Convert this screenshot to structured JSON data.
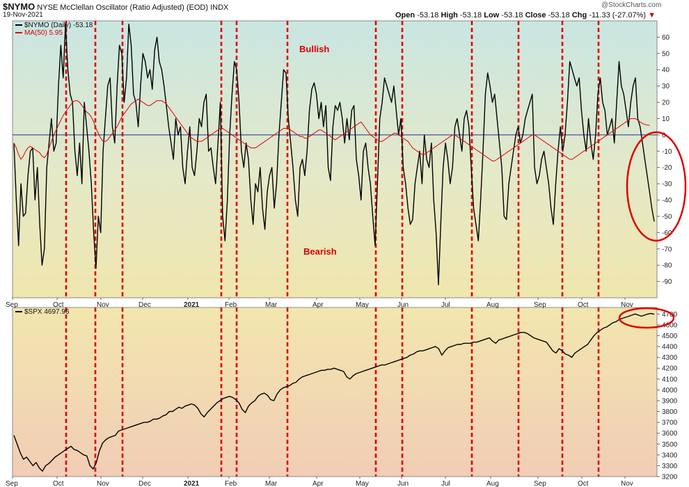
{
  "header": {
    "symbol": "$NYMO",
    "description": "NYSE McClellan Oscillator (Ratio Adjusted) (EOD)",
    "index_tag": "INDX",
    "date": "19-Nov-2021",
    "open_label": "Open",
    "open_value": "-53.18",
    "high_label": "High",
    "high_value": "-53.18",
    "low_label": "Low",
    "low_value": "-53.18",
    "close_label": "Close",
    "close_value": "-53.18",
    "chg_label": "Chg",
    "chg_value": "-11.33 (-27.07%)",
    "watermark": "@StockCharts.com"
  },
  "colors": {
    "price_line": "#000000",
    "ma_line": "#dd0000",
    "vline": "#e00000",
    "zero_line": "#1f2f8f",
    "ellipse": "#e00000",
    "annotation": "#dd0000"
  },
  "chart_data": [
    {
      "type": "line",
      "legend": [
        {
          "name": "$NYMO (Daily) -53.18",
          "color": "#000000"
        },
        {
          "name": "MA(50) 5.95",
          "color": "#dd0000"
        }
      ],
      "annotations": [
        "Bullish",
        "Bearish"
      ],
      "ylim": [
        -100,
        70
      ],
      "yticks": [
        60,
        50,
        40,
        30,
        20,
        10,
        0,
        -10,
        -20,
        -30,
        -40,
        -50,
        -60,
        -70,
        -80,
        -90
      ],
      "x_tick_labels": [
        "Sep",
        "Oct",
        "Nov",
        "Dec",
        "2021",
        "Feb",
        "Mar",
        "Apr",
        "May",
        "Jun",
        "Jul",
        "Aug",
        "Sep",
        "Oct",
        "Nov"
      ],
      "series": [
        {
          "name": "$NYMO (Daily)",
          "values": [
            -5,
            -40,
            -68,
            -30,
            -50,
            -48,
            -25,
            -10,
            -8,
            -40,
            -20,
            -55,
            -80,
            -70,
            -20,
            -5,
            10,
            -10,
            -5,
            30,
            55,
            35,
            68,
            40,
            25,
            20,
            -10,
            -25,
            -5,
            -30,
            20,
            5,
            -10,
            -30,
            -60,
            -82,
            -50,
            -60,
            -10,
            10,
            30,
            35,
            5,
            -5,
            30,
            55,
            50,
            20,
            35,
            68,
            55,
            25,
            20,
            5,
            30,
            50,
            45,
            35,
            40,
            28,
            52,
            60,
            45,
            40,
            30,
            18,
            5,
            -5,
            -15,
            10,
            0,
            5,
            -20,
            -30,
            -10,
            5,
            -20,
            -25,
            -10,
            10,
            5,
            20,
            25,
            -10,
            -8,
            -20,
            -30,
            -5,
            20,
            -50,
            -65,
            -40,
            0,
            25,
            45,
            40,
            20,
            -10,
            -20,
            -5,
            -15,
            -40,
            -55,
            -30,
            -35,
            -20,
            -45,
            -58,
            -35,
            -25,
            -20,
            -45,
            -30,
            0,
            20,
            40,
            38,
            10,
            -5,
            -20,
            -40,
            -50,
            -20,
            -15,
            -25,
            -10,
            15,
            28,
            32,
            25,
            10,
            20,
            5,
            18,
            -20,
            -28,
            5,
            18,
            15,
            20,
            10,
            -5,
            10,
            -3,
            15,
            18,
            -15,
            -25,
            -40,
            -10,
            -5,
            -20,
            -30,
            -50,
            -68,
            -30,
            10,
            20,
            35,
            30,
            25,
            20,
            30,
            15,
            0,
            10,
            -20,
            -30,
            -45,
            -55,
            -52,
            -30,
            -20,
            -10,
            -30,
            0,
            -15,
            -20,
            -5,
            -40,
            -60,
            -92,
            -55,
            -20,
            -5,
            -15,
            -30,
            -20,
            5,
            10,
            0,
            -10,
            10,
            15,
            5,
            -20,
            -45,
            -55,
            -65,
            -40,
            -10,
            25,
            38,
            30,
            20,
            25,
            10,
            -5,
            -20,
            -50,
            -52,
            -30,
            -20,
            -10,
            0,
            5,
            -5,
            0,
            10,
            15,
            20,
            25,
            -20,
            -30,
            -25,
            -15,
            -10,
            -20,
            -30,
            -45,
            -55,
            -30,
            -10,
            5,
            -10,
            0,
            20,
            45,
            40,
            35,
            30,
            35,
            15,
            0,
            -10,
            10,
            -5,
            -15,
            0,
            25,
            35,
            20,
            15,
            0,
            5,
            10,
            -5,
            20,
            45,
            30,
            25,
            15,
            5,
            20,
            30,
            35,
            10,
            5,
            -5,
            -15,
            -25,
            -35,
            -45,
            -53.18
          ]
        },
        {
          "name": "MA(50)",
          "values": [
            -5,
            -8,
            -12,
            -15,
            -13,
            -10,
            -8,
            -7,
            -8,
            -9,
            -10,
            -11,
            -13,
            -14,
            -12,
            -8,
            -4,
            0,
            3,
            6,
            9,
            12,
            14,
            16,
            18,
            20,
            21,
            21,
            20,
            18,
            16,
            14,
            13,
            11,
            8,
            4,
            1,
            -2,
            -4,
            -4,
            -3,
            -1,
            1,
            3,
            5,
            8,
            11,
            13,
            15,
            17,
            19,
            20,
            21,
            22,
            21,
            20,
            19,
            18,
            18,
            19,
            20,
            21,
            21,
            21,
            20,
            19,
            17,
            15,
            13,
            11,
            9,
            7,
            5,
            3,
            1,
            -1,
            -2,
            -3,
            -4,
            -4,
            -4,
            -3,
            -2,
            -1,
            0,
            1,
            2,
            3,
            4,
            4,
            3,
            2,
            1,
            0,
            -1,
            -2,
            -3,
            -4,
            -5,
            -6,
            -7,
            -8,
            -8,
            -8,
            -7,
            -6,
            -5,
            -4,
            -3,
            -2,
            -1,
            0,
            1,
            2,
            3,
            4,
            4,
            4,
            3,
            2,
            1,
            0,
            -1,
            -1,
            -2,
            -2,
            -1,
            0,
            1,
            2,
            3,
            3,
            2,
            1,
            0,
            -1,
            -2,
            -3,
            -2,
            -1,
            0,
            1,
            2,
            3,
            4,
            5,
            6,
            7,
            8,
            6,
            4,
            2,
            0,
            -1,
            -2,
            -3,
            -4,
            -4,
            -3,
            -2,
            -1,
            0,
            1,
            1,
            0,
            -1,
            -2,
            -3,
            -4,
            -6,
            -8,
            -9,
            -10,
            -11,
            -12,
            -12,
            -11,
            -10,
            -9,
            -8,
            -7,
            -6,
            -5,
            -4,
            -3,
            -2,
            -1,
            0,
            0,
            -1,
            -2,
            -3,
            -4,
            -5,
            -6,
            -7,
            -8,
            -9,
            -10,
            -11,
            -12,
            -13,
            -14,
            -15,
            -16,
            -16,
            -15,
            -14,
            -13,
            -12,
            -11,
            -10,
            -9,
            -8,
            -7,
            -6,
            -5,
            -4,
            -3,
            -2,
            -1,
            0,
            0,
            -1,
            -2,
            -3,
            -4,
            -5,
            -6,
            -7,
            -8,
            -9,
            -10,
            -11,
            -12,
            -13,
            -14,
            -15,
            -15,
            -14,
            -13,
            -12,
            -11,
            -10,
            -9,
            -8,
            -7,
            -6,
            -5,
            -4,
            -3,
            -2,
            -1,
            0,
            1,
            2,
            3,
            4,
            5,
            6,
            7,
            8,
            9,
            10,
            10,
            10,
            9,
            8,
            7,
            6.5,
            6,
            5.95
          ]
        }
      ]
    },
    {
      "type": "line",
      "legend": [
        {
          "name": "$SPX 4697.96",
          "color": "#000000"
        }
      ],
      "ylim": [
        3200,
        4760
      ],
      "yticks": [
        4700,
        4600,
        4500,
        4400,
        4300,
        4200,
        4100,
        4000,
        3900,
        3800,
        3700,
        3600,
        3500,
        3400,
        3300,
        3200
      ],
      "x_tick_labels": [
        "Sep",
        "Oct",
        "Nov",
        "Dec",
        "2021",
        "Feb",
        "Mar",
        "Apr",
        "May",
        "Jun",
        "Jul",
        "Aug",
        "Sep",
        "Oct",
        "Nov"
      ],
      "series": [
        {
          "name": "$SPX",
          "values": [
            3580,
            3500,
            3420,
            3360,
            3380,
            3340,
            3300,
            3330,
            3280,
            3250,
            3300,
            3320,
            3350,
            3380,
            3400,
            3420,
            3440,
            3460,
            3480,
            3450,
            3440,
            3420,
            3400,
            3390,
            3300,
            3270,
            3330,
            3440,
            3510,
            3540,
            3560,
            3570,
            3580,
            3620,
            3630,
            3640,
            3650,
            3660,
            3670,
            3680,
            3690,
            3700,
            3700,
            3710,
            3730,
            3730,
            3740,
            3760,
            3770,
            3800,
            3800,
            3820,
            3840,
            3830,
            3850,
            3860,
            3870,
            3860,
            3830,
            3780,
            3750,
            3790,
            3820,
            3850,
            3880,
            3900,
            3920,
            3930,
            3940,
            3930,
            3910,
            3880,
            3820,
            3790,
            3850,
            3880,
            3900,
            3940,
            3960,
            3970,
            3950,
            3910,
            3900,
            3960,
            4000,
            4020,
            4030,
            4040,
            4060,
            4070,
            4100,
            4120,
            4130,
            4140,
            4150,
            4160,
            4170,
            4180,
            4180,
            4190,
            4190,
            4200,
            4190,
            4180,
            4170,
            4120,
            4100,
            4130,
            4150,
            4160,
            4170,
            4180,
            4190,
            4200,
            4210,
            4220,
            4230,
            4230,
            4240,
            4250,
            4260,
            4270,
            4280,
            4290,
            4300,
            4320,
            4330,
            4350,
            4360,
            4360,
            4370,
            4380,
            4390,
            4400,
            4380,
            4320,
            4360,
            4390,
            4400,
            4410,
            4420,
            4420,
            4430,
            4430,
            4430,
            4440,
            4440,
            4450,
            4460,
            4470,
            4480,
            4450,
            4430,
            4460,
            4470,
            4480,
            4490,
            4500,
            4510,
            4520,
            4530,
            4530,
            4520,
            4500,
            4480,
            4470,
            4460,
            4450,
            4440,
            4400,
            4360,
            4340,
            4380,
            4360,
            4330,
            4320,
            4300,
            4340,
            4360,
            4380,
            4400,
            4420,
            4460,
            4500,
            4530,
            4550,
            4570,
            4580,
            4600,
            4620,
            4630,
            4650,
            4660,
            4670,
            4680,
            4690,
            4700,
            4690,
            4680,
            4690,
            4700,
            4705,
            4698
          ]
        }
      ]
    }
  ]
}
